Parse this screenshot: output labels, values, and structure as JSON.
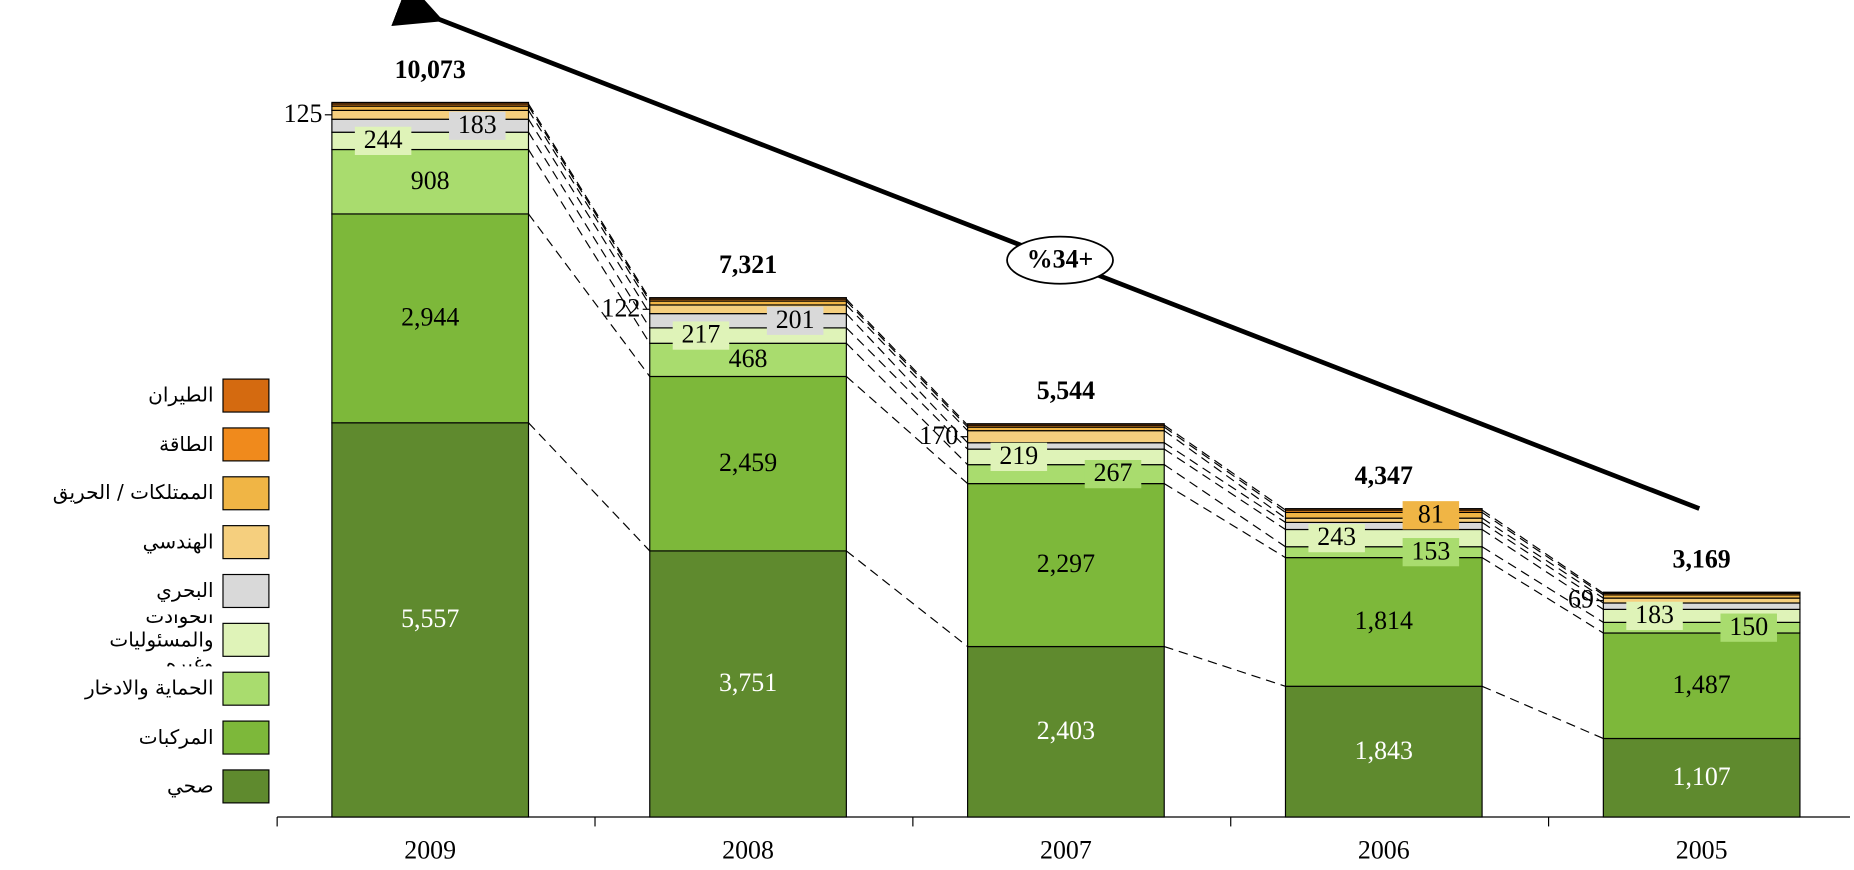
{
  "chart_data": {
    "type": "stacked_bar",
    "categories": [
      "2009",
      "2008",
      "2007",
      "2006",
      "2005"
    ],
    "series": [
      {
        "name": "صحي",
        "color": "#5f8a2e",
        "values": [
          5557,
          3751,
          2403,
          1843,
          1107
        ],
        "value_labels": [
          "5,557",
          "3,751",
          "2,403",
          "1,843",
          "1,107"
        ]
      },
      {
        "name": "المركبات",
        "color": "#7db83a",
        "values": [
          2944,
          2459,
          2297,
          1814,
          1487
        ],
        "value_labels": [
          "2,944",
          "2,459",
          "2,297",
          "1,814",
          "1,487"
        ]
      },
      {
        "name": "الحماية والادخار",
        "color": "#a9dc6e",
        "values": [
          908,
          468,
          267,
          153,
          150
        ],
        "value_labels": [
          "908",
          "468",
          "267",
          "153",
          "150"
        ]
      },
      {
        "name": "الحوادث والمسئوليات وغيره",
        "color": "#dff3b8",
        "values": [
          244,
          217,
          219,
          243,
          183
        ],
        "value_labels": [
          "244",
          "217",
          "219",
          "243",
          "183"
        ]
      },
      {
        "name": "البحري",
        "color": "#d9d9d9",
        "values": [
          183,
          201,
          90,
          100,
          90
        ],
        "value_labels": [
          "183",
          "201",
          null,
          null,
          null
        ]
      },
      {
        "name": "الهندسي",
        "color": "#f5cf7e",
        "values": [
          125,
          122,
          170,
          60,
          69
        ],
        "value_labels": [
          "125",
          "122",
          "170",
          null,
          "69"
        ]
      },
      {
        "name": "الممتلكات / الحريق",
        "color": "#f0b545",
        "values": [
          60,
          55,
          50,
          81,
          45
        ],
        "value_labels": [
          null,
          null,
          null,
          "81",
          null
        ]
      },
      {
        "name": "الطاقة",
        "color": "#f08a1c",
        "values": [
          30,
          28,
          28,
          33,
          23
        ],
        "value_labels": [
          null,
          null,
          null,
          null,
          null
        ]
      },
      {
        "name": "الطيران",
        "color": "#d46a10",
        "values": [
          22,
          20,
          20,
          20,
          15
        ],
        "value_labels": [
          null,
          null,
          null,
          null,
          null
        ]
      }
    ],
    "totals": [
      10073,
      7321,
      5544,
      4347,
      3169
    ],
    "total_labels": [
      "10,073",
      "7,321",
      "5,544",
      "4,347",
      "3,169"
    ],
    "annotation": "%34+"
  }
}
